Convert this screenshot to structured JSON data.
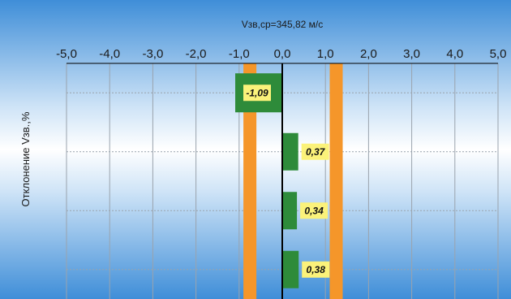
{
  "chart_data": {
    "type": "bar",
    "orientation": "horizontal",
    "title": "Vзв,ср=345,82 м/с",
    "xlabel": "",
    "ylabel": "Отклонение Vзв.,%",
    "xlim": [
      -5.0,
      5.0
    ],
    "xticks": [
      "-5,0",
      "-4,0",
      "-3,0",
      "-2,0",
      "-1,0",
      "0,0",
      "1,0",
      "2,0",
      "3,0",
      "4,0",
      "5,0"
    ],
    "grid": true,
    "reference_lines": [
      -0.75,
      1.25
    ],
    "series": [
      {
        "values": [
          -1.09,
          0.37,
          0.34,
          0.38
        ],
        "labels": [
          "-1,09",
          "0,37",
          "0,34",
          "0,38"
        ]
      }
    ]
  },
  "colors": {
    "bar": "#2e8b3a",
    "reference_line": "#f5962a",
    "label_bg": "#fbf27a",
    "background_blue": "#3f8ed8",
    "background_white": "#ffffff",
    "axis": "#000000",
    "grid": "#9aa3ad"
  }
}
